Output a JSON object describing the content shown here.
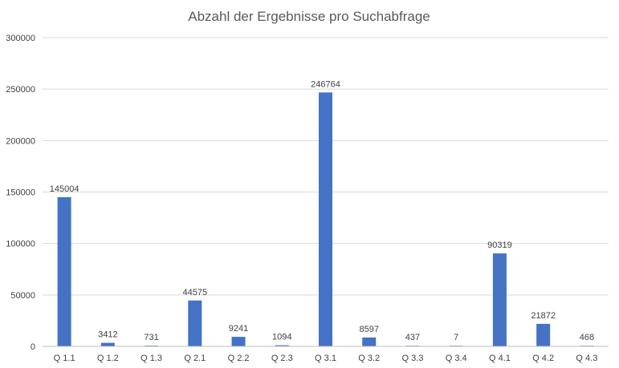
{
  "chart_data": {
    "type": "bar",
    "title": "Abzahl der Ergebnisse pro Suchabfrage",
    "categories": [
      "Q 1.1",
      "Q 1.2",
      "Q 1.3",
      "Q 2.1",
      "Q 2.2",
      "Q 2.3",
      "Q 3.1",
      "Q 3.2",
      "Q 3.3",
      "Q 3.4",
      "Q 4.1",
      "Q 4.2",
      "Q 4.3"
    ],
    "values": [
      145004,
      3412,
      731,
      44575,
      9241,
      1094,
      246764,
      8597,
      437,
      7,
      90319,
      21872,
      468
    ],
    "data_labels": [
      "145004",
      "3412",
      "731",
      "44575",
      "9241",
      "1094",
      "246764",
      "8597",
      "437",
      "7",
      "90319",
      "21872",
      "468"
    ],
    "ylim": [
      0,
      300000
    ],
    "yticks": [
      "0",
      "50000",
      "100000",
      "150000",
      "200000",
      "250000",
      "300000"
    ],
    "ytick_values": [
      0,
      50000,
      100000,
      150000,
      200000,
      250000,
      300000
    ],
    "xlabel": "",
    "ylabel": "",
    "grid": true,
    "legend": "none",
    "bar_color": "#4472c4"
  }
}
